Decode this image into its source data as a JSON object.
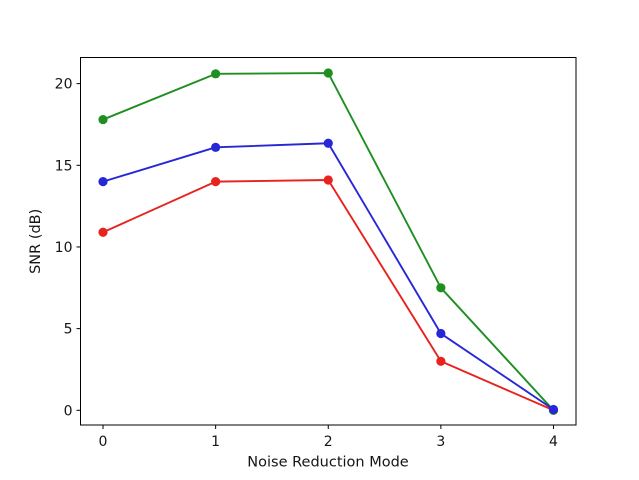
{
  "figure": {
    "background": "#ffffff"
  },
  "chart_data": {
    "type": "line",
    "title": "",
    "xlabel": "Noise Reduction Mode",
    "ylabel": "SNR (dB)",
    "x": [
      0,
      1,
      2,
      3,
      4
    ],
    "x_tick_labels": [
      "0",
      "1",
      "2",
      "3",
      "4"
    ],
    "y_ticks": [
      0,
      5,
      10,
      15,
      20
    ],
    "y_tick_labels": [
      "0",
      "5",
      "10",
      "15",
      "20"
    ],
    "xlim": [
      -0.2,
      4.2
    ],
    "ylim": [
      -0.9,
      21.6
    ],
    "grid": false,
    "legend": "none",
    "marker": "circle",
    "series": [
      {
        "name": "red-series",
        "color": "#e8221e",
        "values": [
          10.9,
          14.0,
          14.1,
          3.0,
          0.0
        ]
      },
      {
        "name": "green-series",
        "color": "#1f8f21",
        "values": [
          17.8,
          20.6,
          20.65,
          7.5,
          0.0
        ]
      },
      {
        "name": "blue-series",
        "color": "#2727d8",
        "values": [
          14.0,
          16.1,
          16.35,
          4.7,
          0.05
        ]
      }
    ]
  }
}
